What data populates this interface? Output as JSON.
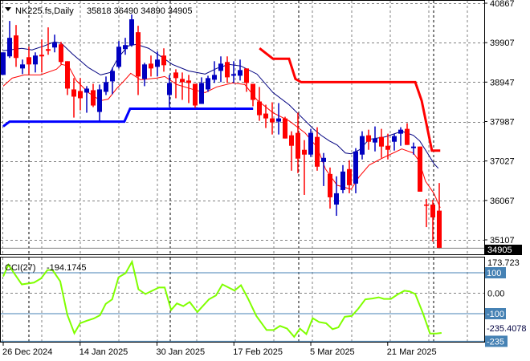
{
  "header": {
    "menu_icon": "triangle-down-icon",
    "symbol_timeframe": "NK225.fs,Daily",
    "ohlc": "35818 36490 34890 34905"
  },
  "colors": {
    "bull": "#0000c0",
    "bear": "#ff0000",
    "ma_fast": "#000080",
    "ma_slow": "#ff0000",
    "support": "#0000ff",
    "resistance": "#ff0000",
    "cci": "#80ff00",
    "cci_levels": "#4682b4",
    "grid": "#808080"
  },
  "chart_data": [
    {
      "type": "candlestick",
      "title": "NK225.fs,Daily",
      "last_price_label": "34905",
      "ylim": [
        35107,
        40867
      ],
      "y_ticks": [
        "40867",
        "39907",
        "38947",
        "37987",
        "37027",
        "36067",
        "35107"
      ],
      "x_tick_labels": [
        "26 Dec 2024",
        "14 Jan 2025",
        "30 Jan 2025",
        "17 Feb 2025",
        "5 Mar 2025",
        "21 Mar 2025"
      ],
      "x_tick_index": [
        0,
        12,
        24,
        36,
        48,
        60
      ],
      "grid": true,
      "candles_ohlc": [
        [
          39122,
          39671,
          39122,
          39671
        ],
        [
          39573,
          40435,
          39534,
          40024
        ],
        [
          40083,
          40337,
          39318,
          39534
        ],
        [
          39279,
          39495,
          39142,
          39377
        ],
        [
          39553,
          39808,
          39142,
          39377
        ],
        [
          39377,
          39671,
          39181,
          39593
        ],
        [
          39612,
          39985,
          39181,
          39573
        ],
        [
          39749,
          40279,
          39612,
          39710
        ],
        [
          39789,
          40102,
          39671,
          39906
        ],
        [
          39867,
          39926,
          39377,
          39436
        ],
        [
          39455,
          39455,
          38632,
          38789
        ],
        [
          38769,
          39044,
          38083,
          38593
        ],
        [
          38730,
          39044,
          38260,
          38554
        ],
        [
          38691,
          38848,
          38201,
          38789
        ],
        [
          38750,
          38906,
          38338,
          38377
        ],
        [
          38220,
          38887,
          38005,
          38769
        ],
        [
          38710,
          39083,
          38632,
          38946
        ],
        [
          38965,
          39298,
          38652,
          39220
        ],
        [
          39318,
          39946,
          39279,
          39808
        ],
        [
          39749,
          40024,
          39612,
          39848
        ],
        [
          39848,
          40592,
          39808,
          40475
        ],
        [
          40161,
          40318,
          38632,
          39083
        ],
        [
          39024,
          39416,
          38848,
          39377
        ],
        [
          39396,
          39593,
          39083,
          39279
        ],
        [
          39318,
          39691,
          39083,
          39495
        ],
        [
          39593,
          39769,
          39200,
          39357
        ],
        [
          38632,
          39122,
          38338,
          38926
        ],
        [
          39181,
          39259,
          38554,
          39044
        ],
        [
          39024,
          39181,
          38514,
          38946
        ],
        [
          38985,
          39122,
          38436,
          38926
        ],
        [
          38906,
          38906,
          38318,
          38377
        ],
        [
          38416,
          39063,
          38416,
          38926
        ],
        [
          38769,
          39102,
          38710,
          39044
        ],
        [
          39004,
          39455,
          38926,
          39122
        ],
        [
          39220,
          39573,
          38946,
          39396
        ],
        [
          39436,
          39573,
          38926,
          39063
        ],
        [
          39102,
          39455,
          38926,
          39142
        ],
        [
          39102,
          39495,
          38985,
          39240
        ],
        [
          39279,
          39279,
          38710,
          38926
        ],
        [
          38906,
          38906,
          38358,
          38514
        ],
        [
          38475,
          38828,
          38005,
          38142
        ],
        [
          38181,
          38397,
          37829,
          38063
        ],
        [
          38063,
          38455,
          37672,
          37966
        ],
        [
          37985,
          38436,
          37672,
          38063
        ],
        [
          38063,
          38103,
          37574,
          37574
        ],
        [
          37652,
          37750,
          36790,
          37397
        ],
        [
          37711,
          38201,
          36731,
          37084
        ],
        [
          37299,
          37535,
          36201,
          37182
        ],
        [
          37182,
          37809,
          37123,
          37711
        ],
        [
          37613,
          37848,
          36790,
          36888
        ],
        [
          37005,
          37221,
          36417,
          37103
        ],
        [
          36711,
          36868,
          35869,
          36143
        ],
        [
          35966,
          36653,
          35692,
          36241
        ],
        [
          36319,
          36927,
          36241,
          36770
        ],
        [
          36829,
          37045,
          36241,
          36437
        ],
        [
          36476,
          37339,
          36241,
          37260
        ],
        [
          37182,
          37750,
          37064,
          37633
        ],
        [
          37652,
          37789,
          37299,
          37495
        ],
        [
          37476,
          37868,
          37260,
          37574
        ],
        [
          37613,
          37809,
          37103,
          37378
        ],
        [
          37397,
          37691,
          37064,
          37299
        ],
        [
          37495,
          37691,
          37280,
          37633
        ],
        [
          37691,
          37848,
          37397,
          37789
        ],
        [
          37809,
          37946,
          37417,
          37417
        ],
        [
          37339,
          37476,
          37182,
          37378
        ],
        [
          37378,
          37378,
          36280,
          36280
        ],
        [
          35966,
          36104,
          35418,
          35947
        ],
        [
          35966,
          36084,
          35065,
          35653
        ],
        [
          35818,
          36490,
          34890,
          34905
        ]
      ],
      "ma_fast": [
        [
          0,
          39710
        ],
        [
          2.9,
          39769
        ],
        [
          4.5,
          39730
        ],
        [
          6.4,
          39828
        ],
        [
          8,
          39926
        ],
        [
          9.1,
          39887
        ],
        [
          10.8,
          39632
        ],
        [
          13.3,
          39298
        ],
        [
          15.2,
          39122
        ],
        [
          16.7,
          39181
        ],
        [
          17.9,
          39534
        ],
        [
          19.5,
          39828
        ],
        [
          20.8,
          39867
        ],
        [
          22.7,
          39769
        ],
        [
          24.6,
          39573
        ],
        [
          26.4,
          39377
        ],
        [
          28.9,
          39220
        ],
        [
          31.5,
          39142
        ],
        [
          33.3,
          39279
        ],
        [
          35.2,
          39377
        ],
        [
          37.1,
          39338
        ],
        [
          39.6,
          39142
        ],
        [
          42.1,
          38691
        ],
        [
          44.6,
          38397
        ],
        [
          46.5,
          38103
        ],
        [
          48.4,
          37809
        ],
        [
          49.6,
          37652
        ],
        [
          50.9,
          37515
        ],
        [
          52.1,
          37417
        ],
        [
          53.4,
          37221
        ],
        [
          54.3,
          37201
        ],
        [
          55.6,
          37299
        ],
        [
          57.1,
          37554
        ],
        [
          59.6,
          37613
        ],
        [
          62.2,
          37750
        ],
        [
          64,
          37652
        ],
        [
          65,
          37515
        ],
        [
          66.2,
          37221
        ],
        [
          67.2,
          36966
        ],
        [
          67.9,
          36849
        ]
      ],
      "ma_slow": [
        [
          0,
          38848
        ],
        [
          1.4,
          39044
        ],
        [
          3.3,
          39122
        ],
        [
          5.8,
          39122
        ],
        [
          8.3,
          39259
        ],
        [
          9.1,
          39377
        ],
        [
          10.2,
          39338
        ],
        [
          11.4,
          38985
        ],
        [
          13.3,
          38691
        ],
        [
          15.2,
          38495
        ],
        [
          16.4,
          38534
        ],
        [
          17.7,
          38789
        ],
        [
          18.9,
          38985
        ],
        [
          19.9,
          39161
        ],
        [
          21.4,
          39005
        ],
        [
          23.9,
          39044
        ],
        [
          25.2,
          39083
        ],
        [
          27.1,
          38887
        ],
        [
          29.6,
          38769
        ],
        [
          31.5,
          38691
        ],
        [
          33.3,
          38828
        ],
        [
          35.8,
          38926
        ],
        [
          37.7,
          38887
        ],
        [
          39.6,
          38514
        ],
        [
          42.1,
          38201
        ],
        [
          44.6,
          38005
        ],
        [
          47.1,
          37711
        ],
        [
          49,
          37358
        ],
        [
          50.3,
          36829
        ],
        [
          52.1,
          36437
        ],
        [
          54.3,
          36339
        ],
        [
          55.5,
          36633
        ],
        [
          57.1,
          36927
        ],
        [
          59,
          37084
        ],
        [
          62.2,
          37319
        ],
        [
          64,
          37221
        ],
        [
          64.9,
          37025
        ],
        [
          65.9,
          36535
        ],
        [
          67.2,
          36241
        ],
        [
          68.2,
          35888
        ]
      ],
      "support_line": [
        [
          0,
          37868
        ],
        [
          1,
          37985
        ],
        [
          18.9,
          37985
        ],
        [
          19.8,
          38299
        ],
        [
          39,
          38299
        ]
      ],
      "resistance_line": [
        [
          40,
          39769
        ],
        [
          42.1,
          39514
        ],
        [
          44.6,
          39514
        ],
        [
          45.6,
          39024
        ],
        [
          46.5,
          38946
        ],
        [
          64.3,
          38946
        ],
        [
          65.3,
          38495
        ],
        [
          66.9,
          37280
        ],
        [
          68.2,
          37280
        ]
      ]
    },
    {
      "type": "line",
      "title": "CCI(27)",
      "value_label": "-194.1745",
      "ylim": [
        -235.4078,
        173.723
      ],
      "y_ticks": [
        "173.723",
        "100",
        "0.00",
        "-100",
        "-235",
        "-235.4078"
      ],
      "levels": [
        100,
        -100,
        -235
      ],
      "series": [
        {
          "name": "CCI(27)",
          "points": [
            [
              0,
              82
            ],
            [
              0.8,
              139
            ],
            [
              2.9,
              43
            ],
            [
              4.8,
              52
            ],
            [
              5.9,
              72
            ],
            [
              6.9,
              113
            ],
            [
              7.7,
              113
            ],
            [
              8.9,
              58
            ],
            [
              10,
              -105
            ],
            [
              11.1,
              -196
            ],
            [
              12,
              -147
            ],
            [
              13,
              -135
            ],
            [
              14.1,
              -124
            ],
            [
              15.1,
              -108
            ],
            [
              16,
              -52
            ],
            [
              17,
              -30
            ],
            [
              18,
              78
            ],
            [
              19.1,
              98
            ],
            [
              20.1,
              154
            ],
            [
              21.1,
              19
            ],
            [
              22.2,
              -4
            ],
            [
              24.3,
              28
            ],
            [
              25.2,
              28
            ],
            [
              26.2,
              -82
            ],
            [
              27.1,
              -50
            ],
            [
              28.1,
              -63
            ],
            [
              29.1,
              -43
            ],
            [
              30.3,
              -92
            ],
            [
              32.1,
              -30
            ],
            [
              33.2,
              -11
            ],
            [
              34.2,
              43
            ],
            [
              36.1,
              13
            ],
            [
              37.1,
              39
            ],
            [
              38.2,
              -26
            ],
            [
              39.5,
              -111
            ],
            [
              41.1,
              -180
            ],
            [
              42.2,
              -180
            ],
            [
              43.2,
              -160
            ],
            [
              44.3,
              -173
            ],
            [
              45.4,
              -213
            ],
            [
              46.3,
              -173
            ],
            [
              47.3,
              -200
            ],
            [
              48.3,
              -122
            ],
            [
              49.3,
              -141
            ],
            [
              50.4,
              -147
            ],
            [
              51.4,
              -176
            ],
            [
              52.3,
              -167
            ],
            [
              53.3,
              -115
            ],
            [
              54.4,
              -111
            ],
            [
              55.4,
              -76
            ],
            [
              56.5,
              -30
            ],
            [
              57.6,
              -26
            ],
            [
              58.6,
              -20
            ],
            [
              59.4,
              -28
            ],
            [
              60.5,
              -28
            ],
            [
              61.5,
              -7
            ],
            [
              62.6,
              12
            ],
            [
              63.4,
              9
            ],
            [
              64.3,
              -4
            ],
            [
              65.5,
              -98
            ],
            [
              66.6,
              -197
            ],
            [
              67.6,
              -197
            ],
            [
              68.4,
              -194
            ]
          ]
        }
      ]
    }
  ]
}
